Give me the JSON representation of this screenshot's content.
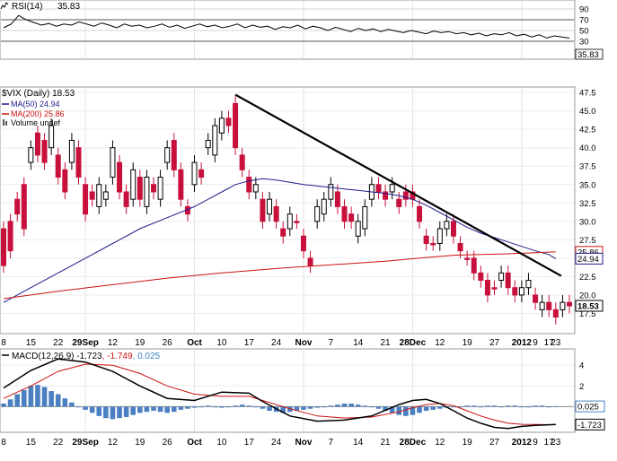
{
  "chart_data": [
    {
      "type": "line",
      "panel": "rsi",
      "label": "RSI(14)",
      "value_label": "35.83",
      "levels": [
        90,
        70,
        50,
        30
      ],
      "ylim": [
        0,
        100
      ],
      "reference_lines": [
        70,
        30
      ],
      "series": [
        {
          "name": "RSI(14)",
          "color": "#000000",
          "values": [
            55,
            62,
            78,
            70,
            65,
            60,
            63,
            58,
            62,
            60,
            66,
            62,
            58,
            64,
            60,
            55,
            62,
            58,
            60,
            55,
            58,
            62,
            56,
            60,
            54,
            58,
            62,
            57,
            60,
            55,
            58,
            62,
            55,
            60,
            56,
            58,
            52,
            57,
            55,
            60,
            53,
            58,
            55,
            50,
            56,
            52,
            48,
            54,
            50,
            53,
            48,
            52,
            49,
            46,
            50,
            47,
            44,
            49,
            46,
            48,
            44,
            46,
            42,
            45,
            40,
            44,
            42,
            46,
            40,
            43,
            38,
            42,
            36,
            40,
            38,
            35.83
          ]
        }
      ]
    },
    {
      "type": "candlestick",
      "panel": "price",
      "title": "$VIX (Daily) 18.53",
      "price_label": "18.53",
      "ylim": [
        15,
        48
      ],
      "yticks": [
        17.5,
        20.0,
        22.5,
        25.0,
        27.5,
        30.0,
        32.5,
        35.0,
        37.5,
        40.0,
        42.5,
        45.0,
        47.5
      ],
      "legend": [
        {
          "label": "MA(50) 24.94",
          "color": "#1c1c8c",
          "value_label": "24.94"
        },
        {
          "label": "MA(200) 25.86",
          "color": "#cc1111",
          "value_label": "25.86"
        },
        {
          "label": "Volume undef",
          "color": "#555555"
        }
      ],
      "x_labels": [
        "8",
        "15",
        "22",
        "29Sep",
        "12",
        "19",
        "26",
        "Oct",
        "10",
        "17",
        "24",
        "Nov",
        "7",
        "14",
        "21",
        "28Dec",
        "12",
        "19",
        "27",
        "2012",
        "9",
        "17",
        "23"
      ],
      "candles": [
        [
          29,
          24
        ],
        [
          30,
          26
        ],
        [
          33,
          31
        ],
        [
          35,
          29
        ],
        [
          38,
          40
        ],
        [
          42,
          39
        ],
        [
          41,
          38
        ],
        [
          40,
          43
        ],
        [
          39,
          36
        ],
        [
          37,
          34
        ],
        [
          38,
          41
        ],
        [
          40,
          36
        ],
        [
          35,
          31
        ],
        [
          34,
          33
        ],
        [
          32,
          35
        ],
        [
          33,
          34
        ],
        [
          36,
          40
        ],
        [
          38,
          34
        ],
        [
          34,
          32
        ],
        [
          33,
          37
        ],
        [
          36,
          33
        ],
        [
          32,
          36
        ],
        [
          35,
          34
        ],
        [
          33,
          36
        ],
        [
          38,
          40
        ],
        [
          41,
          37
        ],
        [
          37,
          33
        ],
        [
          32,
          31
        ],
        [
          35,
          38
        ],
        [
          37,
          36
        ],
        [
          40,
          41
        ],
        [
          39,
          43
        ],
        [
          42,
          44
        ],
        [
          44,
          43
        ],
        [
          46,
          40
        ],
        [
          39,
          37
        ],
        [
          36,
          34
        ],
        [
          34,
          35
        ],
        [
          33,
          30
        ],
        [
          31,
          33
        ],
        [
          32,
          30
        ],
        [
          29,
          28
        ],
        [
          29,
          31
        ],
        [
          30,
          30
        ],
        [
          28,
          26
        ],
        [
          25,
          24
        ],
        [
          30,
          32
        ],
        [
          31,
          33
        ],
        [
          33,
          35
        ],
        [
          34,
          32
        ],
        [
          32,
          30
        ],
        [
          31,
          30
        ],
        [
          28,
          30
        ],
        [
          29,
          32
        ],
        [
          33,
          35
        ],
        [
          35,
          34
        ],
        [
          34,
          33
        ],
        [
          34,
          35
        ],
        [
          33,
          32
        ],
        [
          34,
          33
        ],
        [
          34,
          33
        ],
        [
          32,
          30
        ],
        [
          28,
          27
        ],
        [
          27,
          27
        ],
        [
          27,
          29
        ],
        [
          29,
          30
        ],
        [
          30,
          28
        ],
        [
          27,
          26
        ],
        [
          25,
          25
        ],
        [
          25,
          23
        ],
        [
          23,
          22
        ],
        [
          22,
          20
        ],
        [
          21,
          21
        ],
        [
          22,
          23
        ],
        [
          23,
          21
        ],
        [
          21,
          20
        ],
        [
          20,
          21
        ],
        [
          21,
          22
        ],
        [
          20,
          19
        ],
        [
          18,
          19
        ],
        [
          19,
          18
        ],
        [
          18,
          17
        ],
        [
          18,
          19
        ],
        [
          19,
          18.53
        ]
      ],
      "series": [
        {
          "name": "MA(50)",
          "color": "#1c1c8c",
          "points": [
            [
              0,
              19
            ],
            [
              4,
              21
            ],
            [
              8,
              23
            ],
            [
              12,
              25
            ],
            [
              16,
              27
            ],
            [
              20,
              29
            ],
            [
              24,
              30.5
            ],
            [
              28,
              32
            ],
            [
              30,
              33
            ],
            [
              32,
              34
            ],
            [
              34,
              35
            ],
            [
              36,
              35.5
            ],
            [
              38,
              35.8
            ],
            [
              40,
              35.6
            ],
            [
              42,
              35.3
            ],
            [
              44,
              35
            ],
            [
              46,
              34.8
            ],
            [
              48,
              34.6
            ],
            [
              50,
              34.4
            ],
            [
              52,
              34.2
            ],
            [
              54,
              34
            ],
            [
              56,
              33.8
            ],
            [
              58,
              33.5
            ],
            [
              60,
              33
            ],
            [
              62,
              32.2
            ],
            [
              64,
              31.2
            ],
            [
              66,
              30.2
            ],
            [
              68,
              29.2
            ],
            [
              70,
              28.4
            ],
            [
              72,
              27.8
            ],
            [
              74,
              27.2
            ],
            [
              76,
              26.6
            ],
            [
              78,
              26
            ],
            [
              80,
              25.5
            ],
            [
              81,
              24.94
            ]
          ]
        },
        {
          "name": "MA(200)",
          "color": "#cc1111",
          "points": [
            [
              0,
              19.5
            ],
            [
              8,
              20.5
            ],
            [
              16,
              21.4
            ],
            [
              24,
              22.3
            ],
            [
              32,
              23
            ],
            [
              40,
              23.6
            ],
            [
              48,
              24.1
            ],
            [
              56,
              24.6
            ],
            [
              62,
              25.1
            ],
            [
              66,
              25.4
            ],
            [
              70,
              25.5
            ],
            [
              74,
              25.6
            ],
            [
              78,
              25.75
            ],
            [
              81,
              25.86
            ]
          ]
        }
      ],
      "trendline": {
        "color": "#000000",
        "from": [
          34,
          47.2
        ],
        "to": [
          81,
          22.6
        ]
      }
    },
    {
      "type": "bar",
      "panel": "macd",
      "title": "MACD(12,26,9) -1.723, -1.749, 0.025",
      "title_parts": [
        {
          "text": "MACD(12,26,9) -1.723",
          "color": "#000000"
        },
        {
          "text": ", -1.749",
          "color": "#cc1111"
        },
        {
          "text": ", 0.025",
          "color": "#3b7fc4"
        }
      ],
      "ylim": [
        -2.3,
        5.4
      ],
      "yticks": [
        4,
        2,
        0
      ],
      "value_labels": [
        "0.025",
        "-1.723"
      ],
      "x_labels": [
        "8",
        "15",
        "22",
        "29Sep",
        "12",
        "19",
        "26",
        "Oct",
        "10",
        "17",
        "24",
        "Nov",
        "7",
        "14",
        "21",
        "28Dec",
        "12",
        "19",
        "27",
        "2012",
        "9",
        "17",
        "23"
      ],
      "histogram": [
        0.3,
        0.7,
        1.2,
        1.6,
        2,
        2.1,
        1.9,
        1.5,
        1.2,
        0.8,
        0.4,
        0,
        -0.3,
        -0.6,
        -0.9,
        -1.1,
        -1.2,
        -1.1,
        -1,
        -0.8,
        -0.6,
        -0.5,
        -0.4,
        -0.5,
        -0.6,
        -0.5,
        -0.3,
        -0.2,
        -0.1,
        0,
        0.1,
        0,
        -0.1,
        0,
        0.1,
        0.2,
        0.1,
        0,
        -0.2,
        -0.4,
        -0.5,
        -0.6,
        -0.5,
        -0.4,
        -0.3,
        -0.2,
        -0.1,
        0,
        0.1,
        0.2,
        0.3,
        0.3,
        0.2,
        0.1,
        0,
        -0.2,
        -0.4,
        -0.6,
        -0.8,
        -0.9,
        -0.8,
        -0.6,
        -0.4,
        -0.3,
        -0.2,
        -0.1,
        0,
        0,
        0.1,
        0.1,
        0,
        0.1,
        0.1,
        0,
        0.1,
        0.1,
        0,
        0,
        0.1,
        0.1,
        0,
        0.025
      ],
      "series": [
        {
          "name": "MACD",
          "color": "#000000",
          "points": [
            [
              0,
              1.8
            ],
            [
              4,
              3.5
            ],
            [
              8,
              4.6
            ],
            [
              12,
              4.3
            ],
            [
              16,
              3.4
            ],
            [
              20,
              2
            ],
            [
              24,
              0.8
            ],
            [
              28,
              0.6
            ],
            [
              32,
              1.4
            ],
            [
              36,
              1.3
            ],
            [
              38,
              0.5
            ],
            [
              42,
              -0.9
            ],
            [
              46,
              -1.4
            ],
            [
              50,
              -1.3
            ],
            [
              54,
              -0.9
            ],
            [
              58,
              0.2
            ],
            [
              60,
              0.6
            ],
            [
              62,
              0.7
            ],
            [
              64,
              0.3
            ],
            [
              66,
              -0.4
            ],
            [
              68,
              -1.1
            ],
            [
              70,
              -1.6
            ],
            [
              72,
              -2
            ],
            [
              74,
              -2.1
            ],
            [
              76,
              -1.9
            ],
            [
              78,
              -1.8
            ],
            [
              80,
              -1.75
            ],
            [
              81,
              -1.723
            ]
          ]
        },
        {
          "name": "Signal",
          "color": "#cc1111",
          "points": [
            [
              0,
              0.8
            ],
            [
              4,
              2
            ],
            [
              8,
              3.4
            ],
            [
              12,
              4.1
            ],
            [
              16,
              4
            ],
            [
              20,
              3.2
            ],
            [
              24,
              2
            ],
            [
              28,
              1.2
            ],
            [
              32,
              1
            ],
            [
              36,
              1
            ],
            [
              38,
              0.6
            ],
            [
              42,
              -0.2
            ],
            [
              46,
              -0.9
            ],
            [
              50,
              -1.1
            ],
            [
              54,
              -1
            ],
            [
              58,
              -0.5
            ],
            [
              60,
              -0.1
            ],
            [
              62,
              0.2
            ],
            [
              64,
              0.3
            ],
            [
              66,
              0.1
            ],
            [
              68,
              -0.4
            ],
            [
              70,
              -0.9
            ],
            [
              72,
              -1.3
            ],
            [
              74,
              -1.6
            ],
            [
              76,
              -1.7
            ],
            [
              78,
              -1.72
            ],
            [
              80,
              -1.74
            ],
            [
              81,
              -1.749
            ]
          ]
        }
      ]
    }
  ]
}
